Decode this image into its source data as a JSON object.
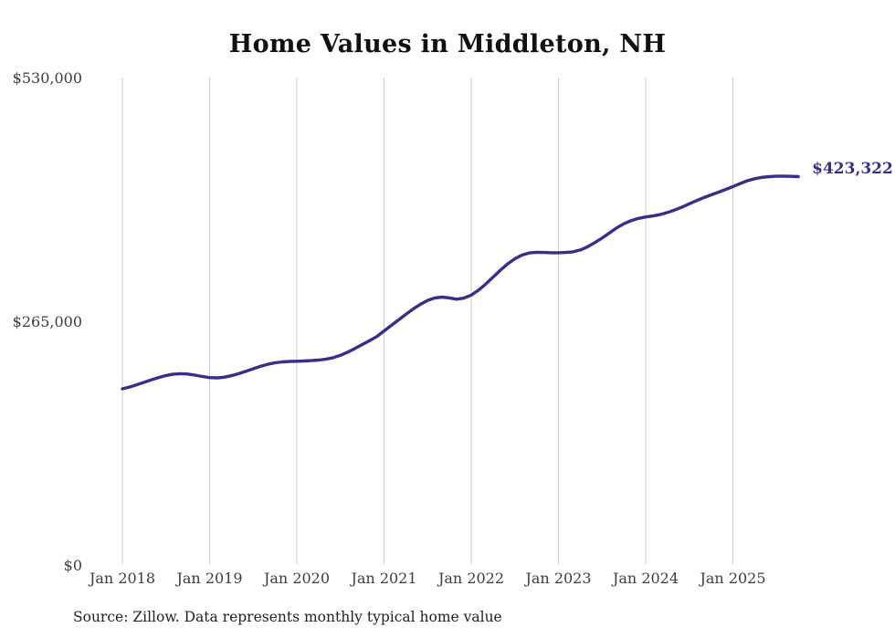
{
  "chart": {
    "title": "Home Values in Middleton, NH",
    "source": "Source: Zillow. Data represents monthly typical home value",
    "end_label": "$423,322",
    "colors": {
      "line": "#37308a",
      "grid": "#cccccc",
      "axis_text": "#3d3d3d",
      "title_text": "#111111"
    }
  },
  "chart_data": {
    "type": "line",
    "title": "Home Values in Middleton, NH",
    "xlabel": "",
    "ylabel": "",
    "ylim": [
      0,
      530000
    ],
    "grid": "vertical-only",
    "legend": "none",
    "y_tick_labels": [
      "$530,000",
      "$265,000",
      "$0"
    ],
    "x_tick_labels": [
      "Jan 2018",
      "Jan 2019",
      "Jan 2020",
      "Jan 2021",
      "Jan 2022",
      "Jan 2023",
      "Jan 2024",
      "Jan 2025"
    ],
    "last_value_label": "$423,322",
    "series": [
      {
        "name": "Monthly typical home value",
        "x": [
          "2018-01",
          "2018-02",
          "2018-03",
          "2018-04",
          "2018-05",
          "2018-06",
          "2018-07",
          "2018-08",
          "2018-09",
          "2018-10",
          "2018-11",
          "2018-12",
          "2019-01",
          "2019-02",
          "2019-03",
          "2019-04",
          "2019-05",
          "2019-06",
          "2019-07",
          "2019-08",
          "2019-09",
          "2019-10",
          "2019-11",
          "2019-12",
          "2020-01",
          "2020-02",
          "2020-03",
          "2020-04",
          "2020-05",
          "2020-06",
          "2020-07",
          "2020-08",
          "2020-09",
          "2020-10",
          "2020-11",
          "2020-12",
          "2021-01",
          "2021-02",
          "2021-03",
          "2021-04",
          "2021-05",
          "2021-06",
          "2021-07",
          "2021-08",
          "2021-09",
          "2021-10",
          "2021-11",
          "2021-12",
          "2022-01",
          "2022-02",
          "2022-03",
          "2022-04",
          "2022-05",
          "2022-06",
          "2022-07",
          "2022-08",
          "2022-09",
          "2022-10",
          "2022-11",
          "2022-12",
          "2023-01",
          "2023-02",
          "2023-03",
          "2023-04",
          "2023-05",
          "2023-06",
          "2023-07",
          "2023-08",
          "2023-09",
          "2023-10",
          "2023-11",
          "2023-12",
          "2024-01",
          "2024-02",
          "2024-03",
          "2024-04",
          "2024-05",
          "2024-06",
          "2024-07",
          "2024-08",
          "2024-09",
          "2024-10",
          "2024-11",
          "2024-12",
          "2025-01",
          "2025-02",
          "2025-03",
          "2025-04",
          "2025-05",
          "2025-06",
          "2025-07",
          "2025-08",
          "2025-09",
          "2025-10"
        ],
        "values": [
          192500,
          194500,
          197000,
          199700,
          202400,
          204900,
          207000,
          208500,
          209000,
          208600,
          207400,
          205900,
          204800,
          204500,
          205200,
          206800,
          209000,
          211600,
          214400,
          217000,
          219200,
          220800,
          221800,
          222300,
          222500,
          222800,
          223200,
          223800,
          224800,
          226400,
          229000,
          232400,
          236400,
          240700,
          245000,
          249300,
          255500,
          261500,
          267500,
          273500,
          279300,
          284500,
          288700,
          291400,
          292300,
          291400,
          290000,
          291200,
          294500,
          299800,
          306500,
          314000,
          321500,
          328400,
          334000,
          338000,
          340300,
          341000,
          340800,
          340500,
          340500,
          340800,
          341500,
          343500,
          347000,
          351500,
          356500,
          362000,
          367500,
          372000,
          375500,
          377800,
          379400,
          380500,
          382000,
          384300,
          387000,
          390200,
          393700,
          397200,
          400500,
          403500,
          406300,
          409300,
          412500,
          415800,
          418800,
          421000,
          422500,
          423300,
          423700,
          423800,
          423600,
          423322
        ]
      }
    ]
  }
}
